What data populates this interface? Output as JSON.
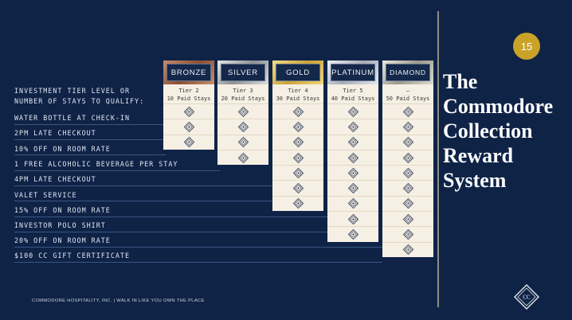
{
  "slide": {
    "page_number": "15",
    "title_lines": [
      "The",
      "Commodore",
      "Collection",
      "Reward",
      "System"
    ],
    "footer": "COMMODORE HOSPITALITY, INC. | WALK IN LIKE YOU OWN THE PLACE",
    "logo_text": "CC"
  },
  "table": {
    "qualify_label_line1": "INVESTMENT TIER LEVEL OR",
    "qualify_label_line2": "NUMBER OF STAYS TO QUALIFY:",
    "benefits": [
      "WATER BOTTLE AT CHECK-IN",
      "2PM LATE CHECKOUT",
      "10% OFF ON ROOM RATE",
      "1 FREE ALCOHOLIC BEVERAGE PER STAY",
      "4PM LATE CHECKOUT",
      "VALET SERVICE",
      "15% OFF ON ROOM RATE",
      "INVESTOR POLO SHIRT",
      "20% OFF ON ROOM RATE",
      "$100 CC GIFT CERTIFICATE"
    ],
    "tiers": [
      {
        "name": "BRONZE",
        "level": "Tier 2",
        "stays": "10 Paid Stays",
        "benefit_count": 3
      },
      {
        "name": "SILVER",
        "level": "Tier 3",
        "stays": "20 Paid Stays",
        "benefit_count": 4
      },
      {
        "name": "GOLD",
        "level": "Tier 4",
        "stays": "30 Paid Stays",
        "benefit_count": 7
      },
      {
        "name": "PLATINUM",
        "level": "Tier 5",
        "stays": "40 Paid Stays",
        "benefit_count": 9
      },
      {
        "name": "DIAMOND",
        "level": "–",
        "stays": "50 Paid Stays",
        "benefit_count": 10
      }
    ]
  },
  "colors": {
    "background": "#0f2347",
    "badge": "#c9a227",
    "cell": "#f6efe3"
  },
  "icons": {
    "benefit": "diamond-check-icon",
    "logo": "cc-diamond-logo-icon"
  }
}
